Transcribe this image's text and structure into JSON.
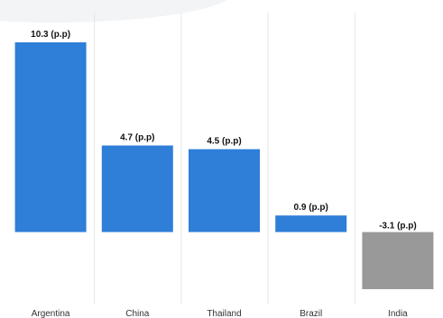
{
  "chart_data": {
    "type": "bar",
    "categories": [
      "Argentina",
      "China",
      "Thailand",
      "Brazil",
      "India"
    ],
    "values": [
      10.3,
      4.7,
      4.5,
      0.9,
      -3.1
    ],
    "data_labels": [
      "10.3 (p.p)",
      "4.7 (p.p)",
      "4.5 (p.p)",
      "0.9 (p.p)",
      "-3.1 (p.p)"
    ],
    "title": "",
    "xlabel": "",
    "ylabel": "",
    "ylim": [
      -3.1,
      10.3
    ],
    "grid": true,
    "legend": "none"
  },
  "colors": {
    "positive": "#2f7ed8",
    "negative": "#999999"
  }
}
